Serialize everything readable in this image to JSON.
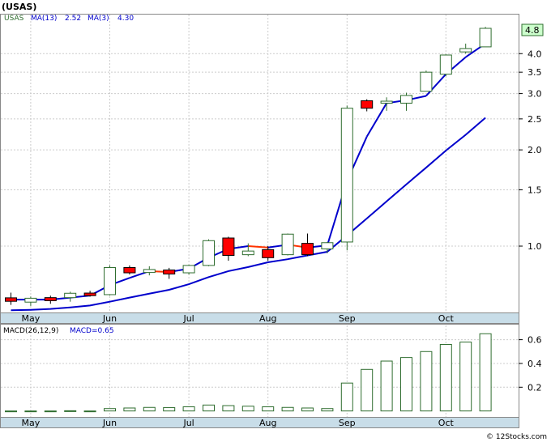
{
  "header": {
    "ticker_title": "(USAS)"
  },
  "legend": {
    "symbol": "USAS",
    "ma13_label": "MA(13)",
    "ma13_value": "2.52",
    "ma3_label": "MA(3)",
    "ma3_value": "4.30",
    "macd_params": "MACD(26,12,9)",
    "macd_value": "MACD=0.65",
    "last_price_tag": "4.8"
  },
  "footer": {
    "credit": "© 12Stocks.com"
  },
  "colors": {
    "up": "#2f6d2f",
    "down_fill": "#ff0000",
    "ma_line": "#0000cc",
    "ma3_down": "#ff3300",
    "axis_band": "#c8dde8",
    "grid": "#cccccc",
    "price_tag": "#ccffcc"
  },
  "chart_data": [
    {
      "type": "candlestick",
      "scale": "log",
      "ylim": [
        0.62,
        5.3
      ],
      "y_ticks": [
        {
          "v": 4.0,
          "label": "4.0"
        },
        {
          "v": 3.5,
          "label": "3.5"
        },
        {
          "v": 3.0,
          "label": "3.0"
        },
        {
          "v": 2.5,
          "label": "2.5"
        },
        {
          "v": 2.0,
          "label": "2.0"
        },
        {
          "v": 1.5,
          "label": "1.5"
        },
        {
          "v": 1.0,
          "label": "1.0"
        }
      ],
      "x_ticks": [
        "May",
        "Jun",
        "Jul",
        "Aug",
        "Sep",
        "Oct"
      ],
      "x_tick_index": [
        1,
        5,
        9,
        13,
        17,
        22
      ],
      "candles": [
        {
          "o": 0.689,
          "h": 0.715,
          "l": 0.655,
          "c": 0.672,
          "up": false
        },
        {
          "o": 0.668,
          "h": 0.695,
          "l": 0.65,
          "c": 0.687,
          "up": true
        },
        {
          "o": 0.69,
          "h": 0.7,
          "l": 0.66,
          "c": 0.675,
          "up": false
        },
        {
          "o": 0.69,
          "h": 0.72,
          "l": 0.67,
          "c": 0.712,
          "up": true
        },
        {
          "o": 0.713,
          "h": 0.725,
          "l": 0.695,
          "c": 0.7,
          "up": false
        },
        {
          "o": 0.705,
          "h": 0.87,
          "l": 0.7,
          "c": 0.857,
          "up": true
        },
        {
          "o": 0.857,
          "h": 0.87,
          "l": 0.815,
          "c": 0.825,
          "up": false
        },
        {
          "o": 0.827,
          "h": 0.865,
          "l": 0.81,
          "c": 0.845,
          "up": true
        },
        {
          "o": 0.842,
          "h": 0.855,
          "l": 0.79,
          "c": 0.818,
          "up": false
        },
        {
          "o": 0.825,
          "h": 0.875,
          "l": 0.815,
          "c": 0.87,
          "up": true
        },
        {
          "o": 0.87,
          "h": 1.05,
          "l": 0.865,
          "c": 1.04,
          "up": true
        },
        {
          "o": 1.06,
          "h": 1.07,
          "l": 0.9,
          "c": 0.935,
          "up": false
        },
        {
          "o": 0.94,
          "h": 1.02,
          "l": 0.93,
          "c": 0.965,
          "up": true
        },
        {
          "o": 0.975,
          "h": 1.0,
          "l": 0.9,
          "c": 0.92,
          "up": false
        },
        {
          "o": 0.94,
          "h": 1.095,
          "l": 0.935,
          "c": 1.09,
          "up": true
        },
        {
          "o": 1.02,
          "h": 1.095,
          "l": 0.93,
          "c": 0.94,
          "up": false
        },
        {
          "o": 0.98,
          "h": 1.03,
          "l": 0.95,
          "c": 1.025,
          "up": true
        },
        {
          "o": 1.03,
          "h": 2.75,
          "l": 0.97,
          "c": 2.7,
          "up": true
        },
        {
          "o": 2.85,
          "h": 2.88,
          "l": 2.64,
          "c": 2.7,
          "up": false
        },
        {
          "o": 2.8,
          "h": 2.92,
          "l": 2.65,
          "c": 2.84,
          "up": true
        },
        {
          "o": 2.8,
          "h": 3.02,
          "l": 2.65,
          "c": 2.96,
          "up": true
        },
        {
          "o": 3.05,
          "h": 3.54,
          "l": 3.05,
          "c": 3.5,
          "up": true
        },
        {
          "o": 3.45,
          "h": 3.98,
          "l": 3.4,
          "c": 3.96,
          "up": true
        },
        {
          "o": 4.05,
          "h": 4.3,
          "l": 4.0,
          "c": 4.15,
          "up": true
        },
        {
          "o": 4.2,
          "h": 4.85,
          "l": 4.2,
          "c": 4.8,
          "up": true
        }
      ],
      "ma3": [
        0.68,
        0.68,
        0.68,
        0.69,
        0.7,
        0.755,
        0.795,
        0.835,
        0.83,
        0.85,
        0.92,
        0.98,
        1.0,
        0.99,
        1.01,
        0.99,
        1.005,
        1.6,
        2.2,
        2.8,
        2.86,
        2.95,
        3.45,
        3.9,
        4.3
      ],
      "ma13": [
        0.63,
        0.632,
        0.636,
        0.643,
        0.652,
        0.67,
        0.69,
        0.71,
        0.73,
        0.76,
        0.8,
        0.835,
        0.86,
        0.89,
        0.91,
        0.935,
        0.96,
        1.08,
        1.22,
        1.38,
        1.56,
        1.76,
        1.99,
        2.23,
        2.52
      ]
    },
    {
      "type": "bar",
      "series_name": "MACD(26,12,9)",
      "ylim": [
        -0.05,
        0.72
      ],
      "y_ticks": [
        {
          "v": 0.6,
          "label": "0.6"
        },
        {
          "v": 0.4,
          "label": "0.4"
        },
        {
          "v": 0.2,
          "label": "0.2"
        }
      ],
      "x_ticks": [
        "May",
        "Jun",
        "Jul",
        "Aug",
        "Sep",
        "Oct"
      ],
      "values": [
        -0.005,
        -0.003,
        -0.002,
        0.002,
        -0.002,
        0.02,
        0.025,
        0.03,
        0.028,
        0.035,
        0.05,
        0.045,
        0.04,
        0.035,
        0.03,
        0.025,
        0.02,
        0.235,
        0.35,
        0.42,
        0.45,
        0.5,
        0.56,
        0.58,
        0.65
      ]
    }
  ]
}
